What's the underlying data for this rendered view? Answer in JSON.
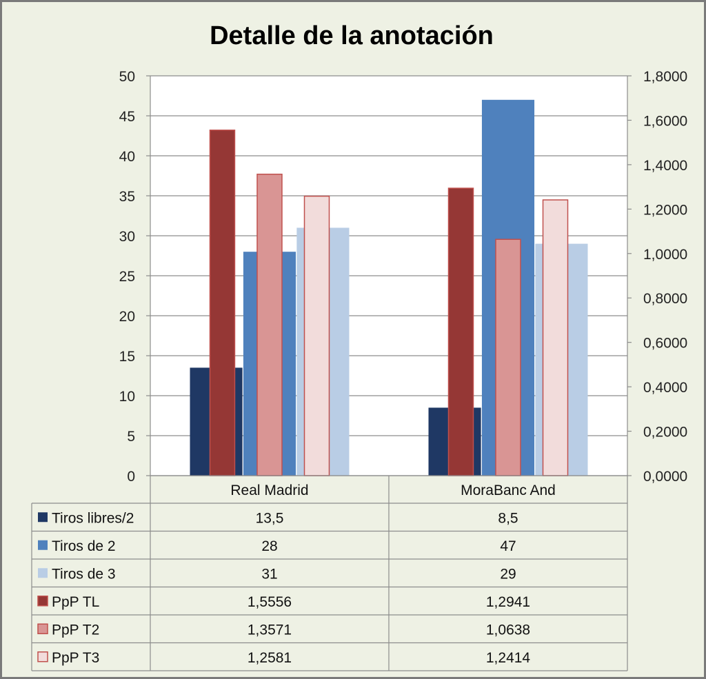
{
  "chart_data": {
    "type": "bar",
    "title": "Detalle de la anotación",
    "categories": [
      "Real Madrid",
      "MoraBanc And"
    ],
    "primary_axis": {
      "ylim": [
        0,
        50
      ],
      "ticks": [
        "0",
        "5",
        "10",
        "15",
        "20",
        "25",
        "30",
        "35",
        "40",
        "45",
        "50"
      ]
    },
    "secondary_axis": {
      "ylim": [
        0,
        1.8
      ],
      "ticks": [
        "0,0000",
        "0,2000",
        "0,4000",
        "0,6000",
        "0,8000",
        "1,0000",
        "1,2000",
        "1,4000",
        "1,6000",
        "1,8000"
      ]
    },
    "series": [
      {
        "name": "Tiros libres/2",
        "axis": "primary",
        "color": "#1f3864",
        "values": [
          13.5,
          8.5
        ],
        "labels": [
          "13,5",
          "8,5"
        ]
      },
      {
        "name": "Tiros de 2",
        "axis": "primary",
        "color": "#4f81bd",
        "values": [
          28,
          47
        ],
        "labels": [
          "28",
          "47"
        ]
      },
      {
        "name": "Tiros de 3",
        "axis": "primary",
        "color": "#b9cde5",
        "values": [
          31,
          29
        ],
        "labels": [
          "31",
          "29"
        ]
      },
      {
        "name": "PpP TL",
        "axis": "secondary",
        "color": "#953735",
        "values": [
          1.5556,
          1.2941
        ],
        "labels": [
          "1,5556",
          "1,2941"
        ]
      },
      {
        "name": "PpP T2",
        "axis": "secondary",
        "color": "#d99594",
        "values": [
          1.3571,
          1.0638
        ],
        "labels": [
          "1,3571",
          "1,0638"
        ]
      },
      {
        "name": "PpP T3",
        "axis": "secondary",
        "color": "#f2dcdb",
        "values": [
          1.2581,
          1.2414
        ],
        "labels": [
          "1,2581",
          "1,2414"
        ]
      }
    ],
    "grid": true,
    "legend": "data-table"
  }
}
